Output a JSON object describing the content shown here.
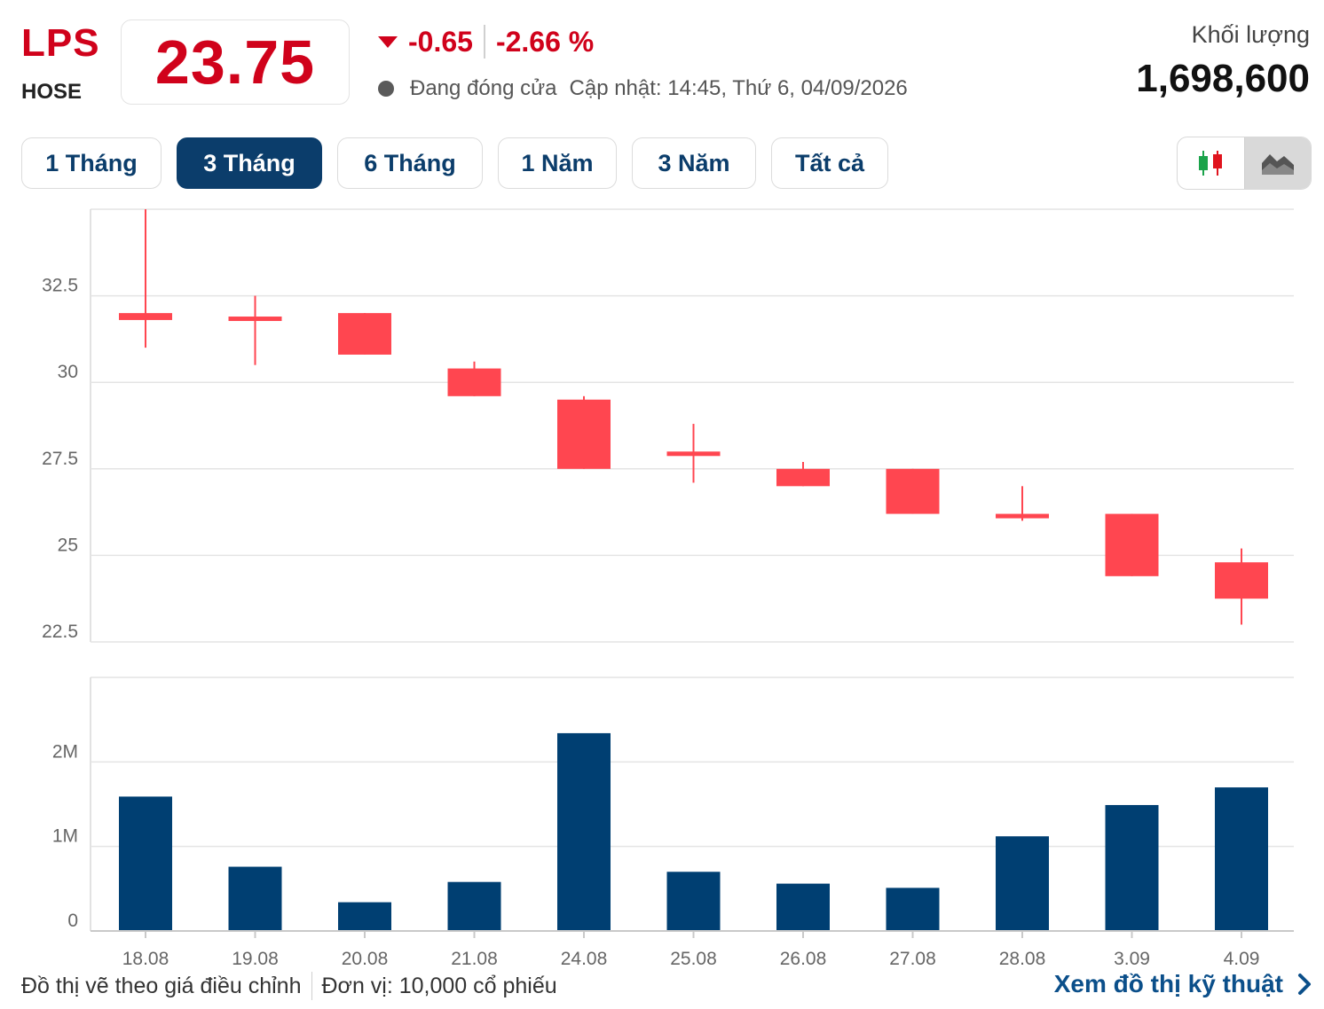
{
  "header": {
    "ticker": "LPS",
    "exchange": "HOSE",
    "price": "23.75",
    "change": "-0.65",
    "change_pct": "-2.66 %",
    "status": "Đang đóng cửa",
    "updated": "Cập nhật: 14:45, Thứ 6, 04/09/2026",
    "volume_label": "Khối lượng",
    "volume_value": "1,698,600",
    "colors": {
      "down": "#d0021b",
      "candle_down": "#ff4650",
      "volume_bar": "#003f72",
      "tab_active": "#0b3d6b"
    }
  },
  "tabs": [
    {
      "label": "1 Tháng",
      "active": false
    },
    {
      "label": "3 Tháng",
      "active": true
    },
    {
      "label": "6 Tháng",
      "active": false
    },
    {
      "label": "1 Năm",
      "active": false
    },
    {
      "label": "3 Năm",
      "active": false
    },
    {
      "label": "Tất cả",
      "active": false
    }
  ],
  "chart_toggle": {
    "options": [
      "candlestick-icon",
      "area-chart-icon"
    ],
    "selected": "area-chart-icon"
  },
  "chart_data": [
    {
      "type": "candlestick",
      "x": [
        "18.08",
        "19.08",
        "20.08",
        "21.08",
        "24.08",
        "25.08",
        "26.08",
        "27.08",
        "28.08",
        "3.09",
        "4.09"
      ],
      "open": [
        32.0,
        31.9,
        32.0,
        30.4,
        29.5,
        28.0,
        27.5,
        27.5,
        26.2,
        26.2,
        24.8
      ],
      "high": [
        35.0,
        32.5,
        32.0,
        30.6,
        29.6,
        28.8,
        27.7,
        27.5,
        27.0,
        26.2,
        25.2
      ],
      "low": [
        31.0,
        30.5,
        30.8,
        29.6,
        27.5,
        27.1,
        27.0,
        26.2,
        26.0,
        24.4,
        23.0
      ],
      "close": [
        31.8,
        31.8,
        30.8,
        29.6,
        27.5,
        28.0,
        27.0,
        26.2,
        26.2,
        24.4,
        23.75
      ],
      "yticks": [
        "32.5",
        "30",
        "27.5",
        "25",
        "22.5"
      ],
      "ylim": [
        22.5,
        35.0
      ],
      "grid": true
    },
    {
      "type": "bar",
      "categories": [
        "18.08",
        "19.08",
        "20.08",
        "21.08",
        "24.08",
        "25.08",
        "26.08",
        "27.08",
        "28.08",
        "3.09",
        "4.09"
      ],
      "values": [
        1590000,
        760000,
        340000,
        580000,
        2340000,
        700000,
        560000,
        510000,
        1120000,
        1490000,
        1698600
      ],
      "yticks": [
        "2M",
        "1M",
        "0"
      ],
      "ylim": [
        0,
        3000000
      ],
      "grid": true
    }
  ],
  "footer": {
    "note": "Đồ thị vẽ theo giá điều chỉnh",
    "unit": "Đơn vị: 10,000 cổ phiếu",
    "link": "Xem đồ thị kỹ thuật"
  }
}
